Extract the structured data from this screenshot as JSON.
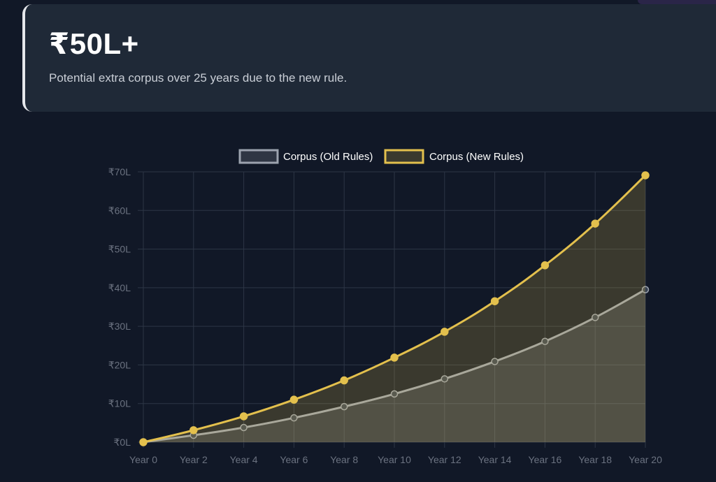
{
  "stat": {
    "value": "₹50L+",
    "description": "Potential extra corpus over 25 years due to the new rule."
  },
  "colors": {
    "background": "#111827",
    "card": "#1f2937",
    "old_rules": "#9ca3af",
    "new_rules": "#e3c04d",
    "grid": "#2d3646"
  },
  "chart_data": {
    "type": "area",
    "categories": [
      "Year 0",
      "Year 2",
      "Year 4",
      "Year 6",
      "Year 8",
      "Year 10",
      "Year 12",
      "Year 14",
      "Year 16",
      "Year 18",
      "Year 20"
    ],
    "y_tick_labels": [
      "₹0L",
      "₹10L",
      "₹20L",
      "₹30L",
      "₹40L",
      "₹50L",
      "₹60L",
      "₹70L"
    ],
    "y_ticks": [
      0,
      10,
      20,
      30,
      40,
      50,
      60,
      70
    ],
    "ylim": [
      0,
      70
    ],
    "unit": "L",
    "grid": true,
    "legend_position": "top-center",
    "series": [
      {
        "name": "Corpus (Old Rules)",
        "values": [
          0,
          1.8,
          3.8,
          6.3,
          9.2,
          12.5,
          16.4,
          20.9,
          26.1,
          32.3,
          39.5
        ]
      },
      {
        "name": "Corpus (New Rules)",
        "values": [
          0,
          3.1,
          6.7,
          11,
          16,
          21.9,
          28.6,
          36.5,
          45.8,
          56.6,
          69.1
        ]
      }
    ]
  }
}
